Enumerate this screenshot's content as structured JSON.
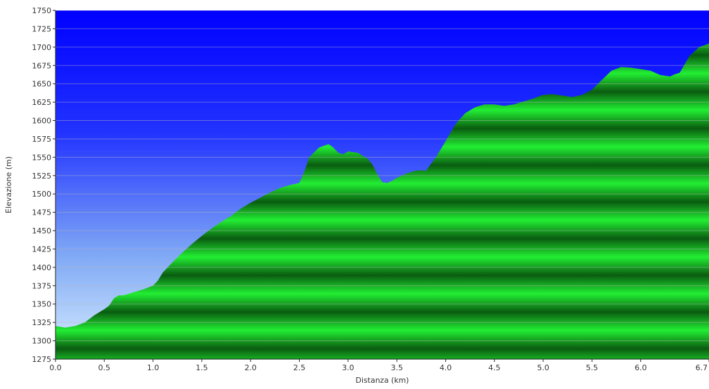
{
  "chart_data": {
    "type": "area",
    "title": "",
    "xlabel": "Distanza  (km)",
    "ylabel": "Elevazione (m)",
    "xlim": [
      0,
      6.7
    ],
    "ylim": [
      1275,
      1750
    ],
    "grid": true,
    "x_ticks": [
      "0.0",
      "0.5",
      "1.0",
      "1.5",
      "2.0",
      "2.5",
      "3.0",
      "3.5",
      "4.0",
      "4.5",
      "5.0",
      "5.5",
      "6.0",
      "6.7"
    ],
    "y_ticks": [
      "1275",
      "1300",
      "1325",
      "1350",
      "1375",
      "1400",
      "1425",
      "1450",
      "1475",
      "1500",
      "1525",
      "1550",
      "1575",
      "1600",
      "1625",
      "1650",
      "1675",
      "1700",
      "1725",
      "1750"
    ],
    "colors": {
      "sky_top": "#0000ff",
      "sky_bottom": "#d8eeff",
      "area_light": "#22ee33",
      "area_dark": "#0a5c10",
      "grid": "#b8b8b8"
    },
    "series": [
      {
        "x": [
          0.0,
          0.1,
          0.2,
          0.3,
          0.4,
          0.5,
          0.55,
          0.6,
          0.65,
          0.7,
          0.8,
          0.9,
          1.0,
          1.05,
          1.1,
          1.2,
          1.3,
          1.4,
          1.5,
          1.6,
          1.7,
          1.8,
          1.9,
          2.0,
          2.1,
          2.2,
          2.3,
          2.4,
          2.5,
          2.55,
          2.6,
          2.7,
          2.8,
          2.85,
          2.9,
          2.95,
          3.0,
          3.1,
          3.2,
          3.25,
          3.3,
          3.35,
          3.4,
          3.45,
          3.5,
          3.6,
          3.7,
          3.8,
          3.9,
          4.0,
          4.1,
          4.2,
          4.3,
          4.4,
          4.5,
          4.6,
          4.7,
          4.8,
          4.9,
          5.0,
          5.1,
          5.2,
          5.3,
          5.4,
          5.5,
          5.6,
          5.7,
          5.8,
          5.9,
          6.0,
          6.1,
          6.2,
          6.3,
          6.35,
          6.4,
          6.5,
          6.6,
          6.7
        ],
        "values": [
          1320,
          1318,
          1320,
          1325,
          1335,
          1343,
          1348,
          1358,
          1362,
          1362,
          1366,
          1370,
          1375,
          1382,
          1393,
          1407,
          1420,
          1432,
          1443,
          1453,
          1462,
          1470,
          1480,
          1488,
          1495,
          1502,
          1508,
          1512,
          1515,
          1530,
          1550,
          1563,
          1568,
          1563,
          1556,
          1554,
          1558,
          1556,
          1548,
          1540,
          1527,
          1516,
          1515,
          1518,
          1522,
          1528,
          1532,
          1532,
          1550,
          1572,
          1595,
          1610,
          1618,
          1622,
          1622,
          1620,
          1622,
          1626,
          1630,
          1635,
          1636,
          1634,
          1632,
          1635,
          1642,
          1655,
          1668,
          1673,
          1672,
          1670,
          1668,
          1662,
          1660,
          1663,
          1665,
          1688,
          1700,
          1705
        ]
      }
    ]
  }
}
